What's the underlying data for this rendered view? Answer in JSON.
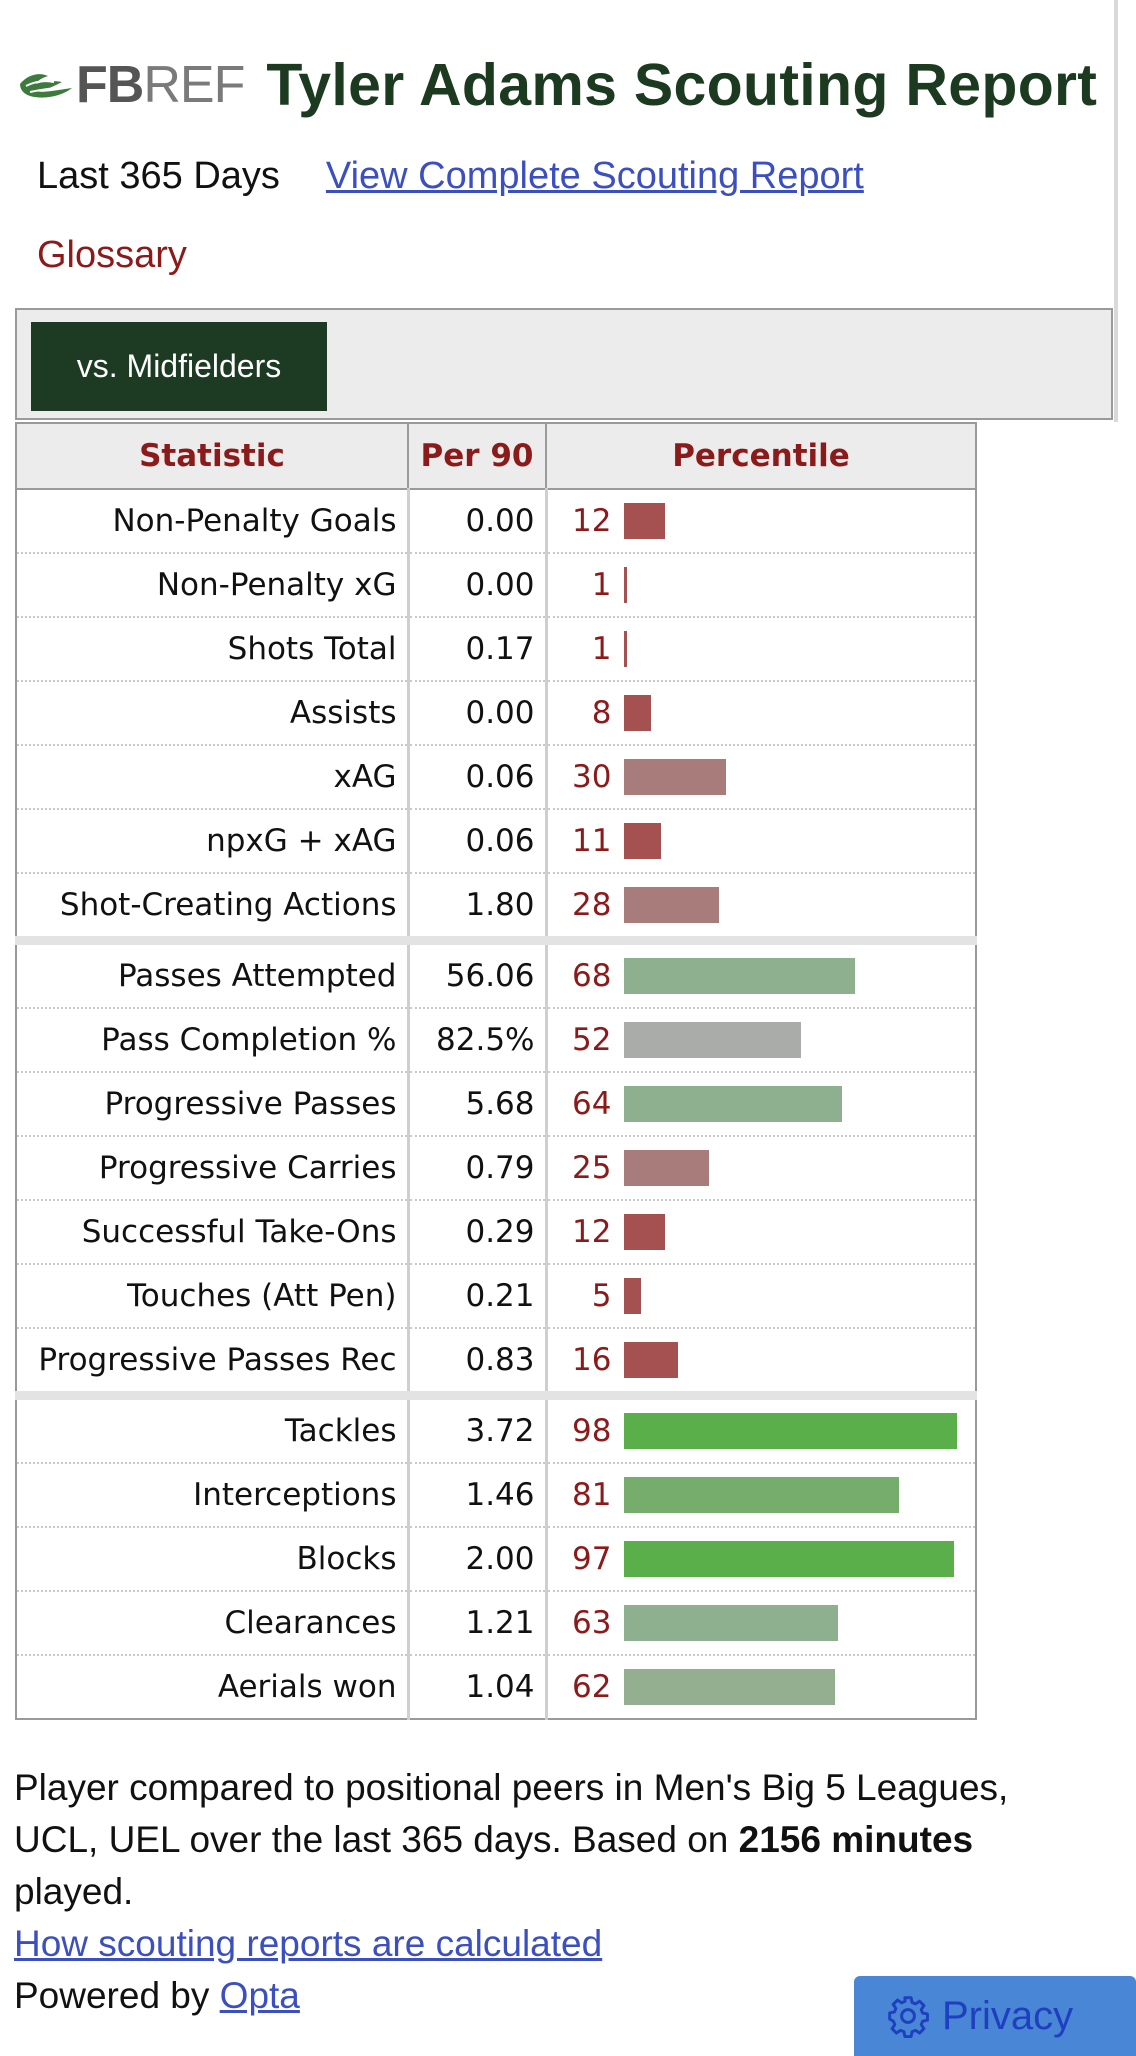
{
  "brand": {
    "logo_text_bold": "FB",
    "logo_text_rest": "REF"
  },
  "header": {
    "title": "Tyler Adams Scouting Report"
  },
  "subnav": {
    "period": "Last 365 Days",
    "complete_link": "View Complete Scouting Report",
    "glossary": "Glossary"
  },
  "filter": {
    "active_label": "vs. Midfielders"
  },
  "table": {
    "headers": [
      "Statistic",
      "Per 90",
      "Percentile"
    ],
    "rows": [
      {
        "stat": "Non-Penalty Goals",
        "per90": "0.00",
        "pct": "12",
        "color": "#a55151"
      },
      {
        "stat": "Non-Penalty xG",
        "per90": "0.00",
        "pct": "1",
        "color": "#a55151"
      },
      {
        "stat": "Shots Total",
        "per90": "0.17",
        "pct": "1",
        "color": "#a55151"
      },
      {
        "stat": "Assists",
        "per90": "0.00",
        "pct": "8",
        "color": "#a55151"
      },
      {
        "stat": "xAG",
        "per90": "0.06",
        "pct": "30",
        "color": "#a97c7c"
      },
      {
        "stat": "npxG + xAG",
        "per90": "0.06",
        "pct": "11",
        "color": "#a55151"
      },
      {
        "stat": "Shot-Creating Actions",
        "per90": "1.80",
        "pct": "28",
        "color": "#a97c7c"
      },
      {
        "stat": "Passes Attempted",
        "per90": "56.06",
        "pct": "68",
        "color": "#8fb08f"
      },
      {
        "stat": "Pass Completion %",
        "per90": "82.5%",
        "pct": "52",
        "color": "#a9aca9"
      },
      {
        "stat": "Progressive Passes",
        "per90": "5.68",
        "pct": "64",
        "color": "#8fb08f"
      },
      {
        "stat": "Progressive Carries",
        "per90": "0.79",
        "pct": "25",
        "color": "#a97c7c"
      },
      {
        "stat": "Successful Take-Ons",
        "per90": "0.29",
        "pct": "12",
        "color": "#a55151"
      },
      {
        "stat": "Touches (Att Pen)",
        "per90": "0.21",
        "pct": "5",
        "color": "#a55151"
      },
      {
        "stat": "Progressive Passes Rec",
        "per90": "0.83",
        "pct": "16",
        "color": "#a55151"
      },
      {
        "stat": "Tackles",
        "per90": "3.72",
        "pct": "98",
        "color": "#5aaf4a"
      },
      {
        "stat": "Interceptions",
        "per90": "1.46",
        "pct": "81",
        "color": "#76ad6d"
      },
      {
        "stat": "Blocks",
        "per90": "2.00",
        "pct": "97",
        "color": "#5aaf4a"
      },
      {
        "stat": "Clearances",
        "per90": "1.21",
        "pct": "63",
        "color": "#8fb08f"
      },
      {
        "stat": "Aerials won",
        "per90": "1.04",
        "pct": "62",
        "color": "#94ae90"
      }
    ]
  },
  "footer": {
    "text_before": "Player compared to positional peers in Men's Big 5 Leagues, UCL, UEL over the last 365 days. Based on ",
    "minutes_bold": "2156 minutes",
    "text_after": " played.",
    "how_link": "How scouting reports are calculated",
    "powered_by": "Powered by ",
    "opta_link": "Opta"
  },
  "privacy": {
    "label": "Privacy"
  }
}
